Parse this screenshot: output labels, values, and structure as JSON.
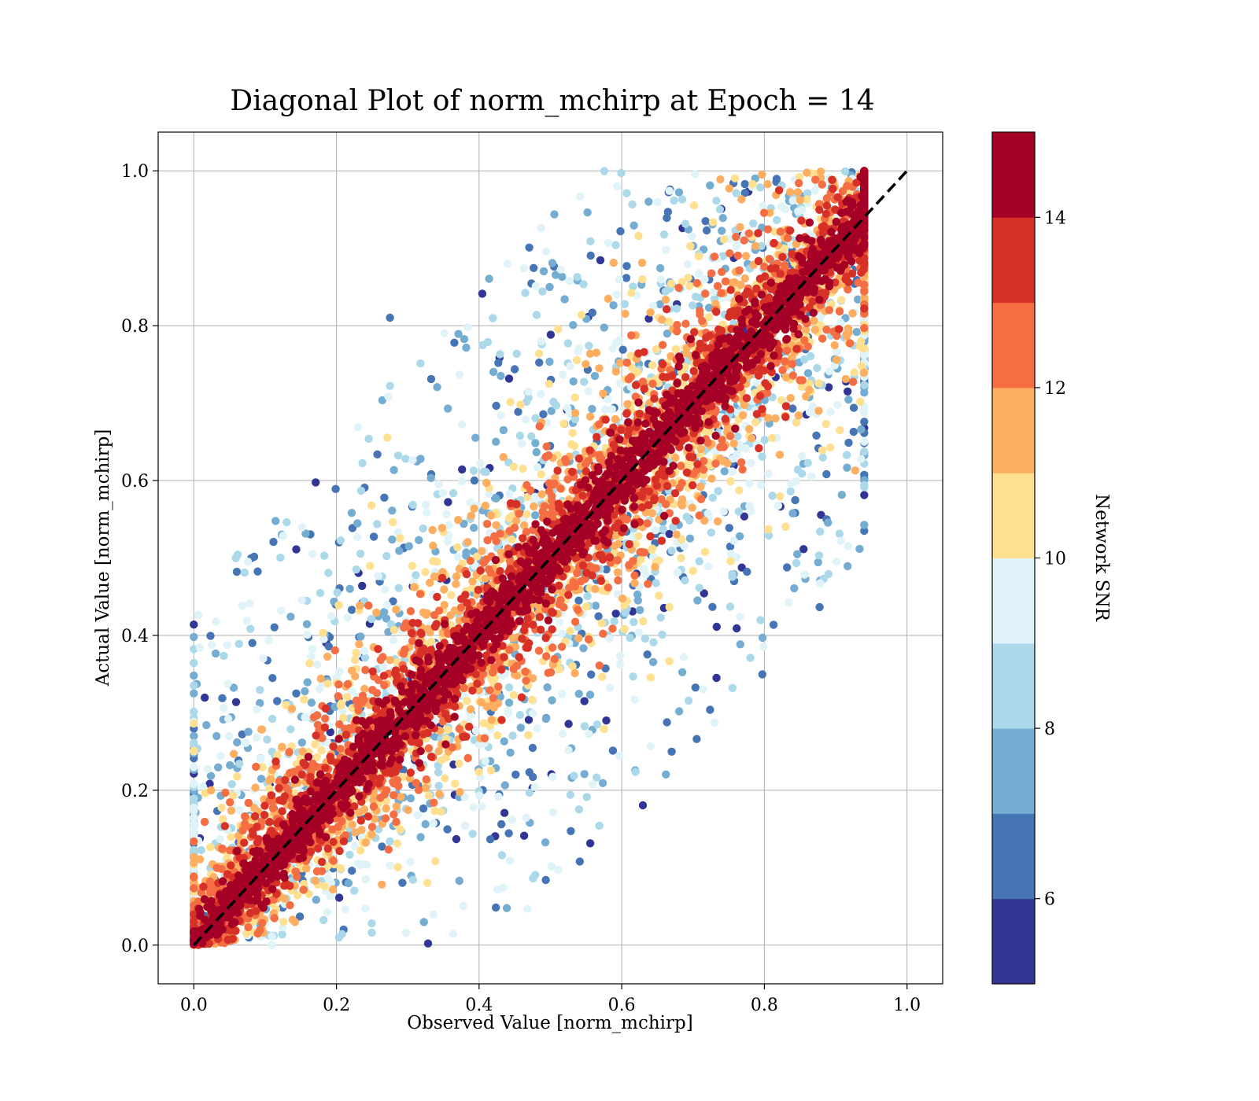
{
  "chart_data": {
    "type": "scatter",
    "title": "Diagonal Plot of norm_mchirp at Epoch = 14",
    "xlabel": "Observed Value [norm_mchirp]",
    "ylabel": "Actual Value [norm_mchirp]",
    "xlim": [
      -0.05,
      1.05
    ],
    "ylim": [
      -0.05,
      1.05
    ],
    "x_ticks": [
      "0.0",
      "0.2",
      "0.4",
      "0.6",
      "0.8",
      "1.0"
    ],
    "y_ticks": [
      "0.0",
      "0.2",
      "0.4",
      "0.6",
      "0.8",
      "1.0"
    ],
    "x_tick_values": [
      0.0,
      0.2,
      0.4,
      0.6,
      0.8,
      1.0
    ],
    "y_tick_values": [
      0.0,
      0.2,
      0.4,
      0.6,
      0.8,
      1.0
    ],
    "grid": true,
    "reference_line": {
      "style": "dashed",
      "color": "#000000",
      "from": [
        0,
        0
      ],
      "to": [
        1,
        1
      ]
    },
    "observed_x_range": [
      0.0,
      0.94
    ],
    "colorbar": {
      "label": "Network SNR",
      "range": [
        5,
        15
      ],
      "ticks": [
        "6",
        "8",
        "10",
        "12",
        "14"
      ],
      "tick_values": [
        6,
        8,
        10,
        12,
        14
      ],
      "colors": [
        "#313695",
        "#4575b4",
        "#74add1",
        "#abd9e9",
        "#e0f3f8",
        "#fee090",
        "#fdae61",
        "#f46d43",
        "#d73027",
        "#a50026"
      ]
    },
    "density_description_values": {
      "high_snr_band_width": 0.05,
      "low_snr_spread": 0.55
    }
  }
}
